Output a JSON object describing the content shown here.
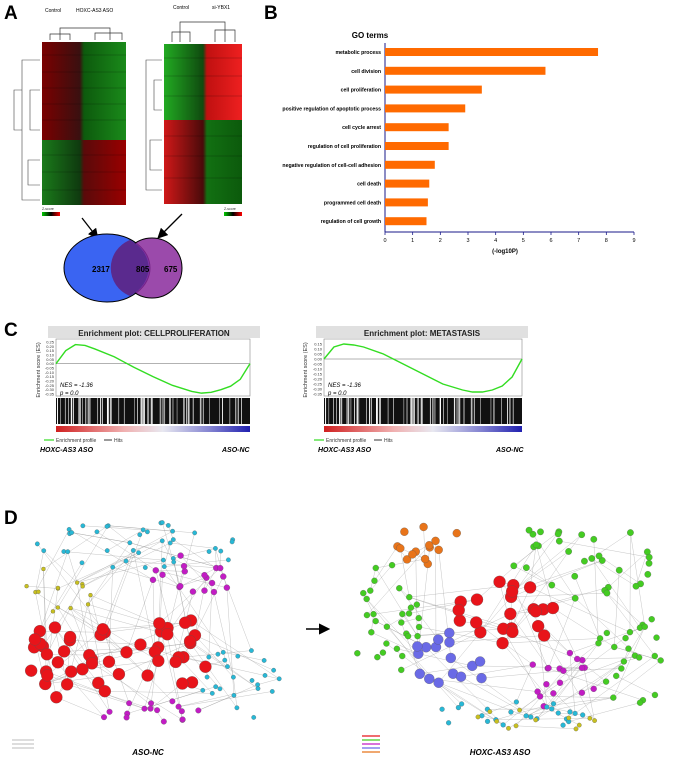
{
  "figure": {
    "panels": [
      "A",
      "B",
      "C",
      "D"
    ]
  },
  "panel_a": {
    "heatmap_left": {
      "col_labels": [
        "Control",
        "HOXC-AS3 ASO"
      ],
      "legend": "Z-score"
    },
    "heatmap_right": {
      "col_labels": [
        "Control",
        "si-YBX1"
      ],
      "legend": "Z-score"
    },
    "venn": {
      "left_only": "2317",
      "overlap": "805",
      "right_only": "675"
    },
    "colors": {
      "venn_left": "#3a64f2",
      "venn_right": "#8a2a9c",
      "overlap": "#5a2a8e"
    }
  },
  "chart_data": [
    {
      "type": "bar",
      "orientation": "horizontal",
      "title": "GO terms",
      "xlabel": "(-log10P)",
      "categories": [
        "metabolic process",
        "cell division",
        "cell proliferation",
        "positive regulation of apoptotic process",
        "cell cycle arrest",
        "regulation of cell proliferation",
        "negative regulation of cell-cell adhesion",
        "cell death",
        "programmed cell death",
        "regulation of cell growth"
      ],
      "values": [
        7.7,
        5.8,
        3.5,
        2.9,
        2.3,
        2.3,
        1.8,
        1.6,
        1.55,
        1.5
      ],
      "xlim": [
        0,
        9
      ],
      "xticks": [
        "0",
        "1",
        "2",
        "3",
        "4",
        "5",
        "6",
        "7",
        "8",
        "9"
      ],
      "bar_color": "#ff6a00"
    },
    {
      "type": "line",
      "title": "Enrichment plot: CELLPROLIFERATION",
      "ylabel": "Enrichment score (ES)",
      "yticks": [
        "0.25",
        "0.20",
        "0.15",
        "0.10",
        "0.05",
        "0.00",
        "-0.05",
        "-0.10",
        "-0.15",
        "-0.20",
        "-0.25",
        "-0.30",
        "-0.35"
      ],
      "ylim": [
        -0.35,
        0.25
      ],
      "x": [
        0,
        0.05,
        0.1,
        0.15,
        0.2,
        0.3,
        0.4,
        0.5,
        0.6,
        0.7,
        0.75,
        0.8,
        0.85,
        0.9,
        0.95,
        1.0
      ],
      "y": [
        0.0,
        0.15,
        0.22,
        0.21,
        0.17,
        0.08,
        -0.04,
        -0.15,
        -0.25,
        -0.32,
        -0.34,
        -0.33,
        -0.3,
        -0.26,
        -0.18,
        0.0
      ],
      "annotations": [
        "NES = -1.36",
        "p = 0.0"
      ],
      "legend": [
        "Enrichment profile",
        "Hits"
      ],
      "group_labels": [
        "HOXC-AS3 ASO",
        "ASO-NC"
      ]
    },
    {
      "type": "line",
      "title": "Enrichment plot: METASTASIS",
      "ylabel": "Enrichment score (ES)",
      "yticks": [
        "0.15",
        "0.10",
        "0.05",
        "0.00",
        "-0.05",
        "-0.10",
        "-0.15",
        "-0.20",
        "-0.25",
        "-0.30",
        "-0.35"
      ],
      "ylim": [
        -0.35,
        0.17
      ],
      "x": [
        0,
        0.05,
        0.1,
        0.15,
        0.2,
        0.3,
        0.4,
        0.5,
        0.6,
        0.7,
        0.75,
        0.8,
        0.85,
        0.9,
        0.95,
        1.0
      ],
      "y": [
        0.0,
        0.12,
        0.15,
        0.14,
        0.12,
        0.05,
        -0.05,
        -0.15,
        -0.25,
        -0.31,
        -0.33,
        -0.33,
        -0.31,
        -0.27,
        -0.18,
        0.0
      ],
      "annotations": [
        "NES = -1.36",
        "p = 0.0"
      ],
      "legend": [
        "Enrichment profile",
        "Hits"
      ],
      "group_labels": [
        "HOXC-AS3 ASO",
        "ASO-NC"
      ]
    }
  ],
  "panel_c": {
    "curve_color": "#33dd22"
  },
  "panel_d": {
    "left_caption": "ASO-NC",
    "right_caption": "HOXC-AS3 ASO",
    "colors": {
      "hub": "#e8141a",
      "magenta": "#c21cc4",
      "cyan": "#27b8d6",
      "green": "#44cc22",
      "olive": "#c8c020",
      "blue": "#6a6ae6",
      "orange": "#e8741a"
    }
  }
}
